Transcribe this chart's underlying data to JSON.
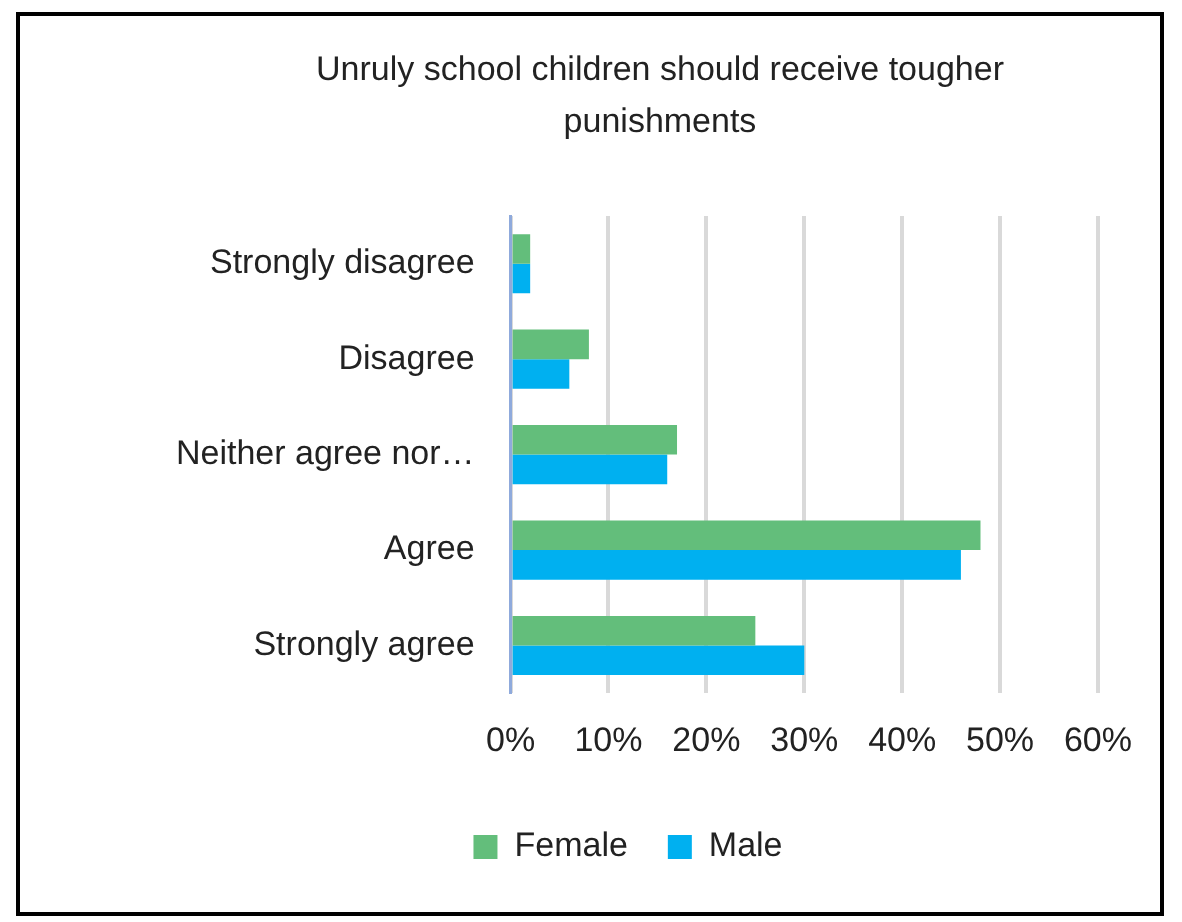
{
  "chart_data": {
    "type": "bar",
    "orientation": "horizontal",
    "title": "Unruly school children should receive tougher punishments",
    "categories": [
      "Strongly disagree",
      "Disagree",
      "Neither agree nor…",
      "Agree",
      "Strongly agree"
    ],
    "series": [
      {
        "name": "Female",
        "color": "#63be7b",
        "values": [
          2,
          8,
          17,
          48,
          25
        ]
      },
      {
        "name": "Male",
        "color": "#00b0f0",
        "values": [
          2,
          6,
          16,
          46,
          30
        ]
      }
    ],
    "xlim": [
      0,
      60
    ],
    "xticks": [
      {
        "value": 0,
        "label": "0%"
      },
      {
        "value": 10,
        "label": "10%"
      },
      {
        "value": 20,
        "label": "20%"
      },
      {
        "value": 30,
        "label": "30%"
      },
      {
        "value": 40,
        "label": "40%"
      },
      {
        "value": 50,
        "label": "50%"
      },
      {
        "value": 60,
        "label": "60%"
      }
    ],
    "grid": "x",
    "legend": "bottom"
  }
}
